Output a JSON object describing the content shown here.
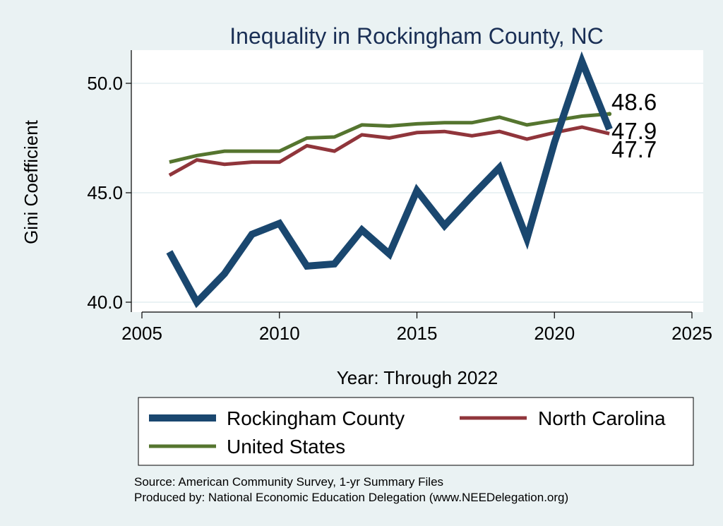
{
  "chart_data": {
    "type": "line",
    "title": "Inequality in Rockingham County, NC",
    "xlabel": "Year: Through 2022",
    "ylabel": "Gini Coefficient",
    "xlim": [
      2005,
      2025
    ],
    "ylim": [
      39.8,
      51.5
    ],
    "x_ticks": [
      2005,
      2010,
      2015,
      2020,
      2025
    ],
    "y_ticks": [
      40.0,
      45.0,
      50.0
    ],
    "y_tick_labels": [
      "40.0",
      "45.0",
      "50.0"
    ],
    "grid": "horizontal",
    "legend_position": "bottom",
    "x": [
      2006,
      2007,
      2008,
      2009,
      2010,
      2011,
      2012,
      2013,
      2014,
      2015,
      2016,
      2017,
      2018,
      2019,
      2020,
      2021,
      2022
    ],
    "series": [
      {
        "name": "Rockingham County",
        "color": "#1a476f",
        "values": [
          42.3,
          40.0,
          41.3,
          43.1,
          43.6,
          41.65,
          41.75,
          43.3,
          42.2,
          45.1,
          43.5,
          44.85,
          46.15,
          42.9,
          47.3,
          51.0,
          47.9
        ],
        "end_label": "47.9"
      },
      {
        "name": "North Carolina",
        "color": "#90353b",
        "values": [
          45.8,
          46.5,
          46.3,
          46.4,
          46.4,
          47.15,
          46.9,
          47.65,
          47.5,
          47.75,
          47.8,
          47.6,
          47.8,
          47.45,
          47.75,
          48.0,
          47.7
        ],
        "end_label": "47.7"
      },
      {
        "name": "United States",
        "color": "#55752f",
        "values": [
          46.4,
          46.7,
          46.9,
          46.9,
          46.9,
          47.5,
          47.55,
          48.1,
          48.05,
          48.15,
          48.2,
          48.2,
          48.45,
          48.1,
          48.3,
          48.5,
          48.6
        ],
        "end_label": "48.6"
      }
    ],
    "source_lines": [
      "Source: American Community Survey, 1-yr Summary Files",
      "Produced by: National Economic Education Delegation (www.NEEDelegation.org)"
    ]
  }
}
